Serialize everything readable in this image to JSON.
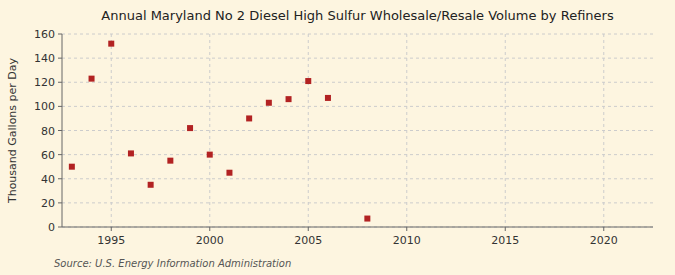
{
  "chart_data": {
    "type": "scatter",
    "title": "Annual Maryland No 2 Diesel High Sulfur Wholesale/Resale Volume by Refiners",
    "y_label": "Thousand Gallons per Day",
    "source": "Source: U.S. Energy Information Administration",
    "x": [
      1993,
      1994,
      1995,
      1996,
      1997,
      1998,
      1999,
      2000,
      2001,
      2002,
      2003,
      2004,
      2005,
      2006,
      2008
    ],
    "values": [
      50,
      123,
      152,
      61,
      35,
      55,
      82,
      60,
      45,
      90,
      103,
      106,
      121,
      107,
      7
    ],
    "color": "#b22222",
    "marker": "square",
    "xlim": [
      1992.5,
      2022.5
    ],
    "ylim": [
      0,
      160
    ],
    "xticks": [
      1995,
      2000,
      2005,
      2010,
      2015,
      2020
    ],
    "yticks": [
      0,
      20,
      40,
      60,
      80,
      100,
      120,
      140,
      160
    ],
    "grid": true
  }
}
